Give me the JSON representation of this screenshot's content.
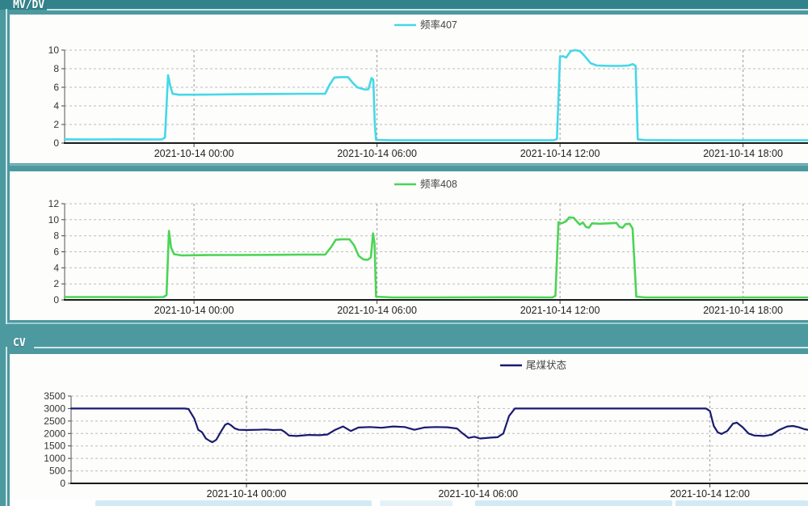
{
  "groups": {
    "mvdv_label": "MV/DV",
    "cv_label": "CV"
  },
  "colors": {
    "background_teal": "#4d99a0",
    "top_band_teal": "#31828b",
    "panel_white": "#fdfdfc",
    "series_407": "#44d8e8",
    "series_408": "#4cd455",
    "series_tail_coal": "#191a70",
    "gridline": "#bcbcbc"
  },
  "chart_data": [
    {
      "type": "line",
      "title": "频率407",
      "legend": "频率407",
      "color": "#44d8e8",
      "line_width": 2.6,
      "grid": true,
      "legend_position": "top-center",
      "xlim": [
        -4.24,
        20.13
      ],
      "ylim": [
        0,
        10
      ],
      "y_ticks": [
        0,
        2,
        4,
        6,
        8,
        10
      ],
      "x_ticks": [
        {
          "value": 0,
          "label": "2021-10-14 00:00"
        },
        {
          "value": 6,
          "label": "2021-10-14 06:00"
        },
        {
          "value": 12,
          "label": "2021-10-14 12:00"
        },
        {
          "value": 18,
          "label": "2021-10-14 18:00"
        }
      ],
      "points": [
        [
          -4.24,
          0.4
        ],
        [
          -3.5,
          0.38
        ],
        [
          -2.5,
          0.4
        ],
        [
          -1.5,
          0.38
        ],
        [
          -1.05,
          0.4
        ],
        [
          -0.95,
          0.6
        ],
        [
          -0.85,
          7.3
        ],
        [
          -0.78,
          6.2
        ],
        [
          -0.7,
          5.3
        ],
        [
          -0.5,
          5.2
        ],
        [
          0.5,
          5.22
        ],
        [
          1.5,
          5.25
        ],
        [
          2.5,
          5.28
        ],
        [
          3.5,
          5.3
        ],
        [
          4.3,
          5.3
        ],
        [
          4.45,
          6.3
        ],
        [
          4.6,
          7.05
        ],
        [
          4.8,
          7.1
        ],
        [
          5.05,
          7.1
        ],
        [
          5.2,
          6.5
        ],
        [
          5.35,
          6.0
        ],
        [
          5.5,
          5.85
        ],
        [
          5.62,
          5.75
        ],
        [
          5.72,
          5.8
        ],
        [
          5.82,
          7.0
        ],
        [
          5.88,
          6.8
        ],
        [
          5.93,
          2.0
        ],
        [
          5.97,
          0.35
        ],
        [
          6.5,
          0.3
        ],
        [
          8,
          0.3
        ],
        [
          10,
          0.3
        ],
        [
          11.8,
          0.3
        ],
        [
          11.9,
          0.45
        ],
        [
          12.0,
          9.3
        ],
        [
          12.1,
          9.35
        ],
        [
          12.2,
          9.2
        ],
        [
          12.35,
          9.9
        ],
        [
          12.5,
          10.0
        ],
        [
          12.65,
          9.9
        ],
        [
          12.8,
          9.4
        ],
        [
          13.0,
          8.6
        ],
        [
          13.2,
          8.35
        ],
        [
          13.6,
          8.3
        ],
        [
          14.0,
          8.3
        ],
        [
          14.25,
          8.35
        ],
        [
          14.38,
          8.5
        ],
        [
          14.48,
          8.3
        ],
        [
          14.55,
          0.4
        ],
        [
          14.8,
          0.32
        ],
        [
          16,
          0.3
        ],
        [
          18,
          0.3
        ],
        [
          20.13,
          0.3
        ]
      ]
    },
    {
      "type": "line",
      "title": "频率408",
      "legend": "频率408",
      "color": "#4cd455",
      "line_width": 2.6,
      "grid": true,
      "legend_position": "top-center",
      "xlim": [
        -4.24,
        20.13
      ],
      "ylim": [
        0,
        12
      ],
      "y_ticks": [
        0,
        2,
        4,
        6,
        8,
        10,
        12
      ],
      "x_ticks": [
        {
          "value": 0,
          "label": "2021-10-14 00:00"
        },
        {
          "value": 6,
          "label": "2021-10-14 06:00"
        },
        {
          "value": 12,
          "label": "2021-10-14 12:00"
        },
        {
          "value": 18,
          "label": "2021-10-14 18:00"
        }
      ],
      "points": [
        [
          -4.24,
          0.35
        ],
        [
          -3,
          0.35
        ],
        [
          -1.5,
          0.33
        ],
        [
          -1.0,
          0.35
        ],
        [
          -0.9,
          0.6
        ],
        [
          -0.82,
          8.6
        ],
        [
          -0.75,
          6.5
        ],
        [
          -0.65,
          5.7
        ],
        [
          -0.4,
          5.55
        ],
        [
          0.5,
          5.6
        ],
        [
          1.5,
          5.6
        ],
        [
          2.5,
          5.62
        ],
        [
          3.5,
          5.65
        ],
        [
          4.3,
          5.65
        ],
        [
          4.5,
          6.6
        ],
        [
          4.65,
          7.5
        ],
        [
          4.85,
          7.55
        ],
        [
          5.1,
          7.55
        ],
        [
          5.25,
          6.8
        ],
        [
          5.4,
          5.5
        ],
        [
          5.55,
          5.05
        ],
        [
          5.7,
          5.0
        ],
        [
          5.8,
          5.3
        ],
        [
          5.87,
          8.3
        ],
        [
          5.92,
          7.0
        ],
        [
          5.97,
          0.4
        ],
        [
          6.5,
          0.3
        ],
        [
          8,
          0.3
        ],
        [
          10,
          0.32
        ],
        [
          11.75,
          0.3
        ],
        [
          11.85,
          0.5
        ],
        [
          11.95,
          9.7
        ],
        [
          12.05,
          9.55
        ],
        [
          12.2,
          9.8
        ],
        [
          12.3,
          10.3
        ],
        [
          12.45,
          10.25
        ],
        [
          12.55,
          9.8
        ],
        [
          12.65,
          9.4
        ],
        [
          12.75,
          9.65
        ],
        [
          12.85,
          9.1
        ],
        [
          12.95,
          9.0
        ],
        [
          13.05,
          9.55
        ],
        [
          13.3,
          9.5
        ],
        [
          13.6,
          9.55
        ],
        [
          13.85,
          9.6
        ],
        [
          13.95,
          9.1
        ],
        [
          14.05,
          9.0
        ],
        [
          14.15,
          9.45
        ],
        [
          14.28,
          9.5
        ],
        [
          14.38,
          8.9
        ],
        [
          14.5,
          0.4
        ],
        [
          14.8,
          0.3
        ],
        [
          17,
          0.3
        ],
        [
          20.13,
          0.3
        ]
      ]
    },
    {
      "type": "line",
      "title": "尾煤状态",
      "legend": "尾煤状态",
      "color": "#191a70",
      "line_width": 2.2,
      "grid": true,
      "legend_position": "top-center",
      "xlim": [
        -4.54,
        14.54
      ],
      "ylim": [
        0,
        3500
      ],
      "y_ticks": [
        0,
        500,
        1000,
        1500,
        2000,
        2500,
        3000,
        3500
      ],
      "x_ticks": [
        {
          "value": 0,
          "label": "2021-10-14 00:00"
        },
        {
          "value": 6,
          "label": "2021-10-14 06:00"
        },
        {
          "value": 12,
          "label": "2021-10-14 12:00"
        }
      ],
      "points": [
        [
          -4.54,
          3000
        ],
        [
          -3.5,
          3000
        ],
        [
          -2.5,
          3000
        ],
        [
          -1.6,
          3000
        ],
        [
          -1.5,
          2980
        ],
        [
          -1.35,
          2600
        ],
        [
          -1.25,
          2150
        ],
        [
          -1.15,
          2050
        ],
        [
          -1.05,
          1800
        ],
        [
          -0.95,
          1700
        ],
        [
          -0.88,
          1650
        ],
        [
          -0.78,
          1750
        ],
        [
          -0.65,
          2100
        ],
        [
          -0.55,
          2350
        ],
        [
          -0.48,
          2400
        ],
        [
          -0.4,
          2330
        ],
        [
          -0.3,
          2200
        ],
        [
          -0.2,
          2150
        ],
        [
          0,
          2140
        ],
        [
          0.3,
          2150
        ],
        [
          0.5,
          2160
        ],
        [
          0.7,
          2140
        ],
        [
          0.9,
          2150
        ],
        [
          1.0,
          2050
        ],
        [
          1.1,
          1920
        ],
        [
          1.3,
          1900
        ],
        [
          1.6,
          1940
        ],
        [
          1.9,
          1930
        ],
        [
          2.1,
          1960
        ],
        [
          2.3,
          2150
        ],
        [
          2.5,
          2280
        ],
        [
          2.7,
          2100
        ],
        [
          2.9,
          2240
        ],
        [
          3.2,
          2260
        ],
        [
          3.5,
          2230
        ],
        [
          3.8,
          2280
        ],
        [
          4.1,
          2260
        ],
        [
          4.35,
          2150
        ],
        [
          4.6,
          2240
        ],
        [
          4.9,
          2260
        ],
        [
          5.2,
          2250
        ],
        [
          5.45,
          2200
        ],
        [
          5.6,
          2000
        ],
        [
          5.75,
          1820
        ],
        [
          5.9,
          1870
        ],
        [
          6.05,
          1800
        ],
        [
          6.3,
          1830
        ],
        [
          6.5,
          1850
        ],
        [
          6.65,
          2000
        ],
        [
          6.8,
          2700
        ],
        [
          6.95,
          3000
        ],
        [
          7.5,
          3000
        ],
        [
          9,
          3000
        ],
        [
          10.5,
          3000
        ],
        [
          11.9,
          3000
        ],
        [
          12.0,
          2900
        ],
        [
          12.1,
          2300
        ],
        [
          12.2,
          2050
        ],
        [
          12.3,
          1980
        ],
        [
          12.45,
          2100
        ],
        [
          12.6,
          2400
        ],
        [
          12.7,
          2430
        ],
        [
          12.85,
          2250
        ],
        [
          13.0,
          2000
        ],
        [
          13.15,
          1920
        ],
        [
          13.4,
          1900
        ],
        [
          13.6,
          1950
        ],
        [
          13.8,
          2150
        ],
        [
          14.0,
          2280
        ],
        [
          14.15,
          2300
        ],
        [
          14.3,
          2250
        ],
        [
          14.45,
          2170
        ],
        [
          14.54,
          2150
        ]
      ]
    }
  ]
}
